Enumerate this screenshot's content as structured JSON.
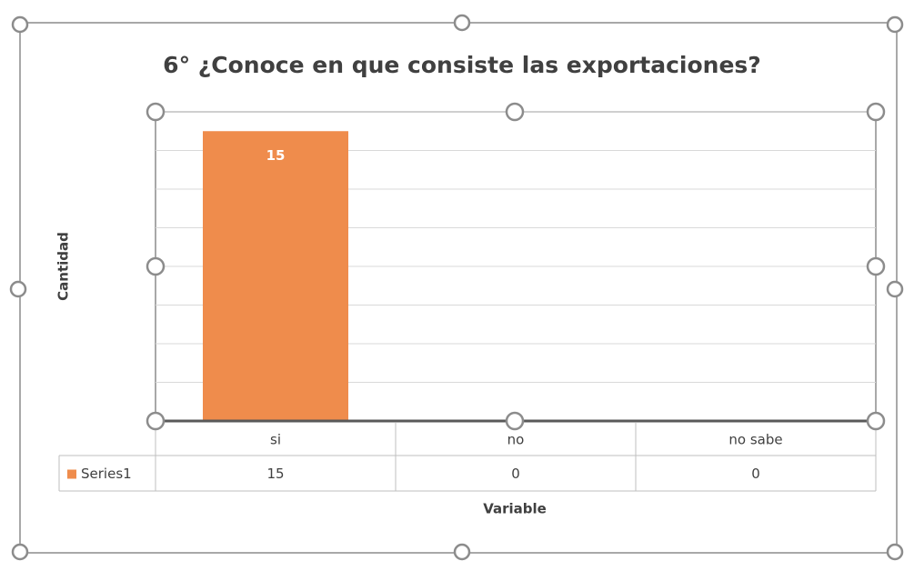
{
  "chart_data": {
    "type": "bar",
    "title": "6° ¿Conoce en que consiste las exportaciones?",
    "y_label": "Cantidad",
    "x_label": "Variable",
    "categories": [
      "si",
      "no",
      "no sabe"
    ],
    "series": [
      {
        "name": "Series1",
        "color": "#ef8c4c",
        "values": [
          15,
          0,
          0
        ]
      }
    ],
    "ylim": [
      0,
      16
    ],
    "yticks": [
      0,
      2,
      4,
      6,
      8,
      10,
      12,
      14,
      16
    ],
    "grid": true,
    "data_table": true
  }
}
